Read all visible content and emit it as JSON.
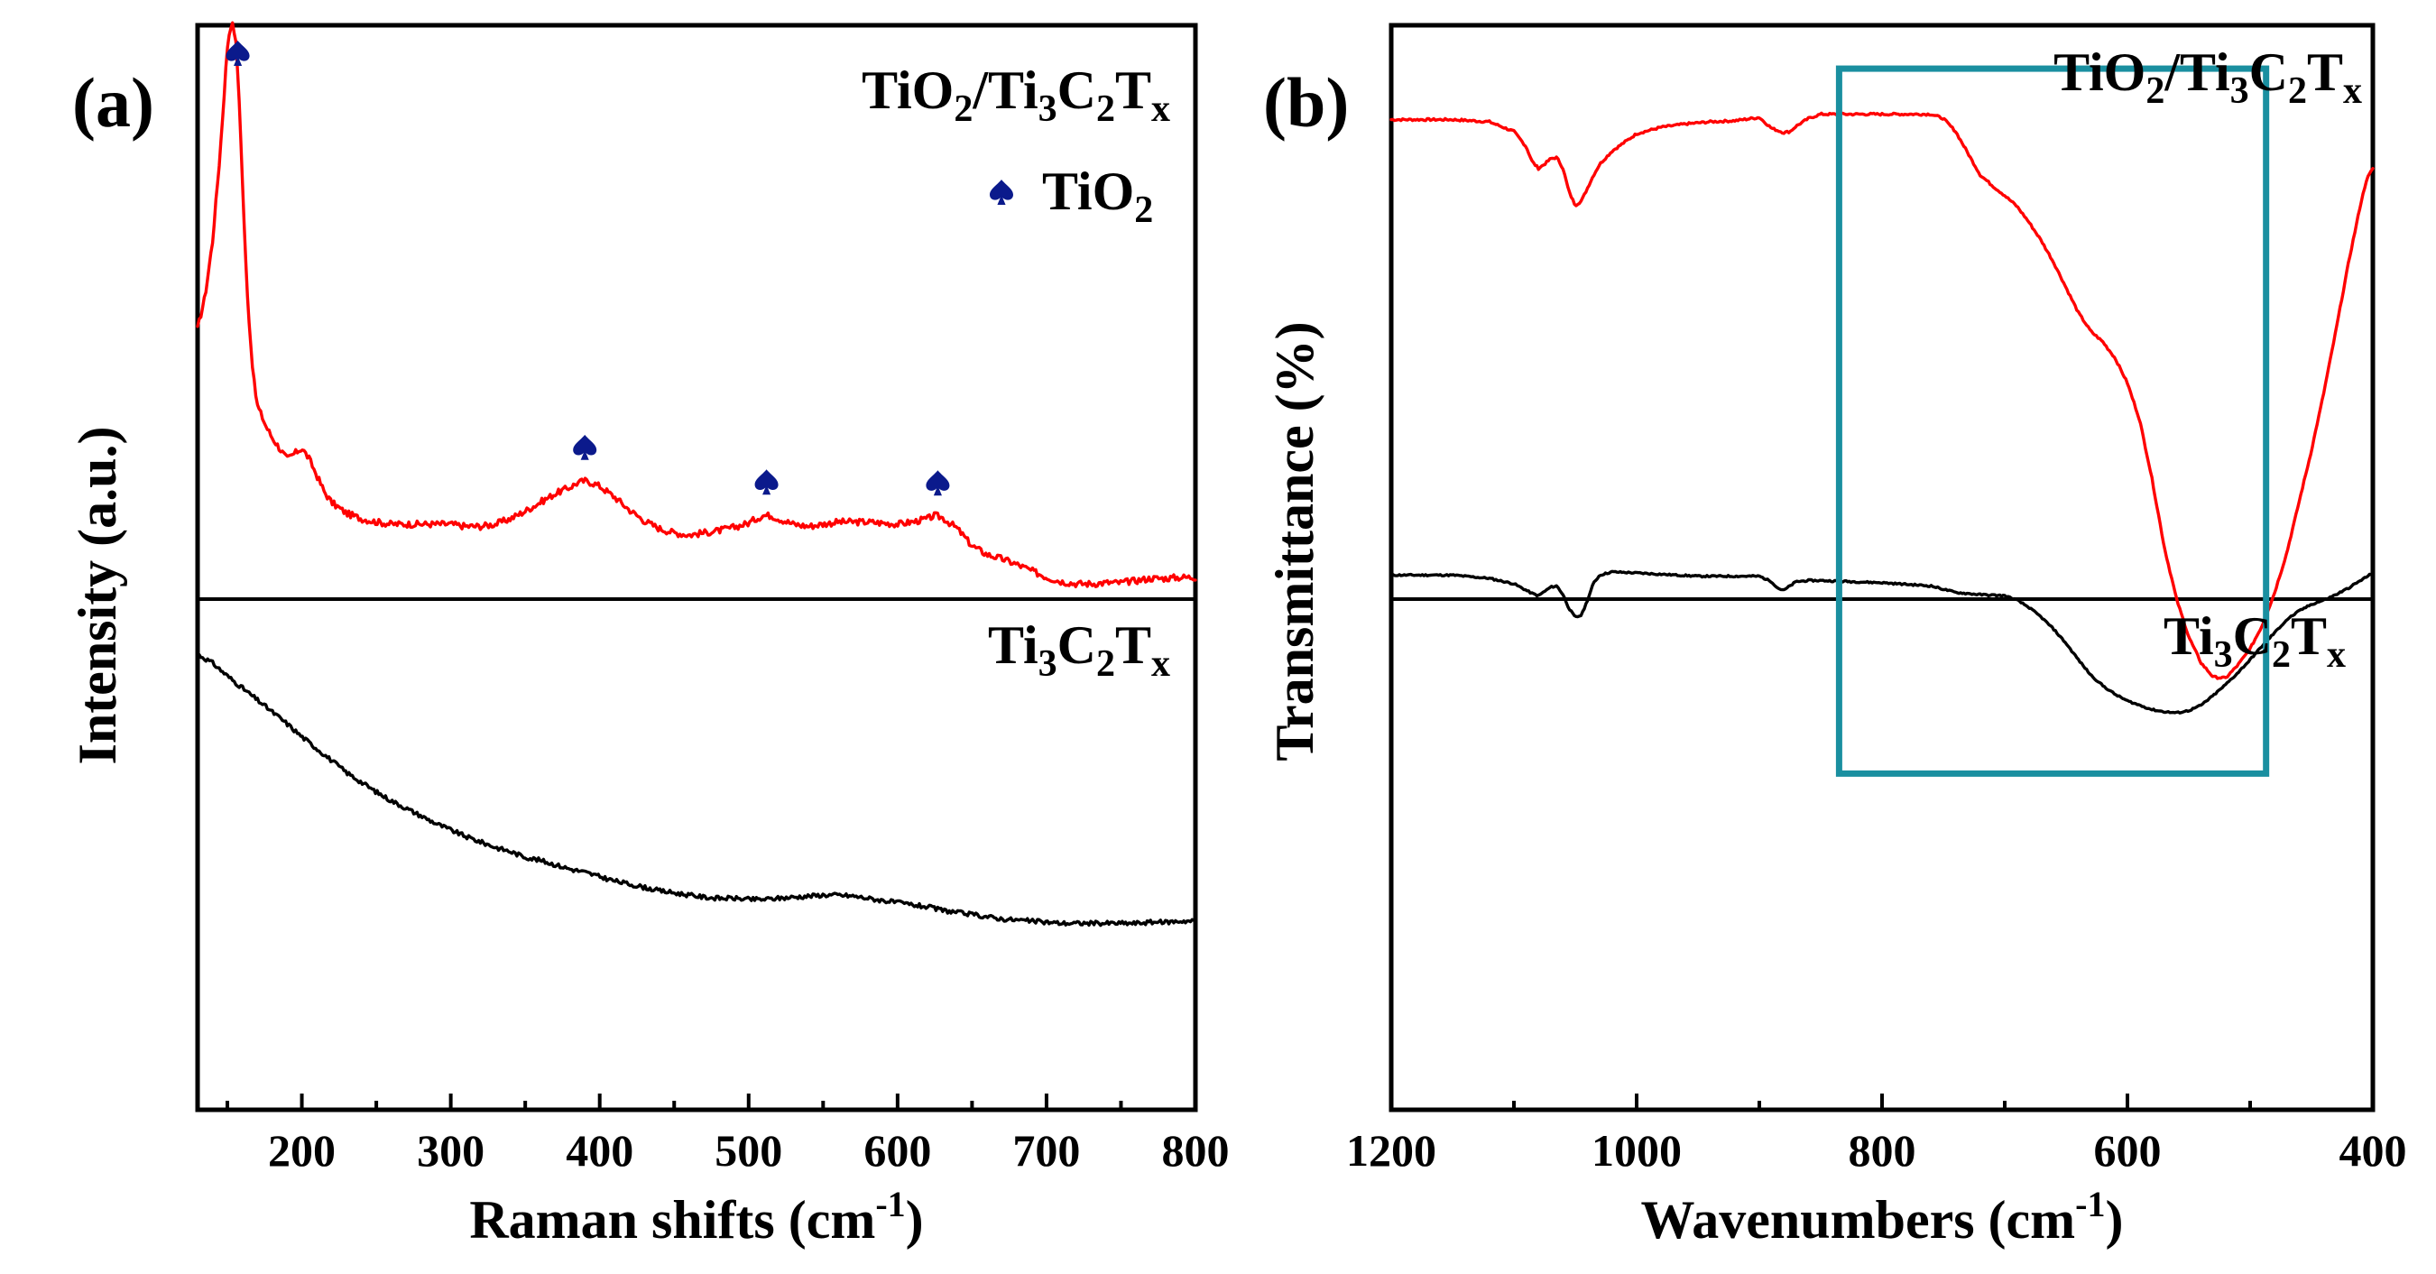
{
  "chart_data": [
    {
      "panel_label": "(a)",
      "type": "line",
      "xlabel": "Raman shifts (cm",
      "xlabel_sup": "-1",
      "xlabel_end": ")",
      "ylabel": "Intensity (a.u.)",
      "xlim": [
        130,
        800
      ],
      "x_ticks": [
        200,
        300,
        400,
        500,
        600,
        700,
        800
      ],
      "x_tick_labels": [
        "200",
        "300",
        "400",
        "500",
        "600",
        "700",
        "800"
      ],
      "colors": {
        "top": "#ff0000",
        "bottom": "#000000",
        "marker": "#0b1a8c"
      },
      "top_label": {
        "p1": "TiO",
        "s1": "2",
        "p2": "/Ti",
        "s2": "3",
        "p3": "C",
        "s3": "2",
        "p4": "T",
        "s4": "x"
      },
      "legend": {
        "text": "TiO",
        "sub": "2",
        "marker_icon": "spade-icon"
      },
      "markers_x": [
        157,
        390,
        512,
        627
      ],
      "bottom_label": {
        "p1": "Ti",
        "s1": "3",
        "p2": "C",
        "s2": "2",
        "p3": "T",
        "s3": "x"
      },
      "series": [
        {
          "name": "TiO2/Ti3C2Tx",
          "x": [
            130,
            135,
            140,
            145,
            148,
            150,
            152,
            154,
            156,
            158,
            160,
            162,
            164,
            166,
            168,
            170,
            173,
            176,
            180,
            185,
            190,
            195,
            200,
            205,
            210,
            215,
            220,
            225,
            230,
            240,
            250,
            260,
            270,
            280,
            290,
            300,
            310,
            320,
            330,
            340,
            350,
            360,
            370,
            380,
            385,
            390,
            395,
            400,
            410,
            420,
            430,
            440,
            450,
            460,
            470,
            480,
            490,
            500,
            505,
            510,
            515,
            520,
            530,
            540,
            550,
            560,
            570,
            580,
            590,
            600,
            610,
            620,
            625,
            630,
            640,
            650,
            660,
            670,
            680,
            690,
            700,
            710,
            720,
            730,
            740,
            750,
            760,
            770,
            780,
            790,
            800
          ],
          "y": [
            0.72,
            0.75,
            0.8,
            0.88,
            0.94,
            0.98,
            1.0,
            1.0,
            0.98,
            0.93,
            0.86,
            0.79,
            0.74,
            0.7,
            0.67,
            0.65,
            0.64,
            0.63,
            0.62,
            0.61,
            0.6,
            0.605,
            0.61,
            0.6,
            0.585,
            0.57,
            0.56,
            0.555,
            0.55,
            0.545,
            0.542,
            0.54,
            0.54,
            0.54,
            0.54,
            0.54,
            0.538,
            0.538,
            0.54,
            0.545,
            0.552,
            0.56,
            0.568,
            0.574,
            0.578,
            0.58,
            0.578,
            0.575,
            0.565,
            0.553,
            0.543,
            0.536,
            0.532,
            0.53,
            0.532,
            0.534,
            0.537,
            0.541,
            0.545,
            0.548,
            0.548,
            0.545,
            0.54,
            0.538,
            0.54,
            0.542,
            0.542,
            0.542,
            0.541,
            0.54,
            0.542,
            0.545,
            0.548,
            0.546,
            0.536,
            0.52,
            0.512,
            0.508,
            0.503,
            0.497,
            0.491,
            0.487,
            0.485,
            0.485,
            0.486,
            0.486,
            0.488,
            0.49,
            0.49,
            0.491,
            0.491
          ]
        },
        {
          "name": "Ti3C2Tx",
          "x": [
            130,
            140,
            150,
            160,
            170,
            180,
            190,
            200,
            210,
            220,
            230,
            240,
            250,
            260,
            270,
            280,
            290,
            300,
            310,
            320,
            330,
            340,
            350,
            360,
            370,
            380,
            390,
            400,
            410,
            420,
            430,
            440,
            450,
            460,
            470,
            480,
            490,
            500,
            510,
            520,
            530,
            540,
            550,
            560,
            570,
            580,
            590,
            600,
            610,
            620,
            630,
            640,
            650,
            660,
            670,
            680,
            690,
            700,
            710,
            720,
            730,
            740,
            750,
            760,
            770,
            780,
            790,
            800
          ],
          "y": [
            0.42,
            0.412,
            0.4,
            0.389,
            0.378,
            0.367,
            0.356,
            0.344,
            0.333,
            0.322,
            0.311,
            0.302,
            0.293,
            0.285,
            0.278,
            0.271,
            0.264,
            0.258,
            0.252,
            0.247,
            0.242,
            0.238,
            0.233,
            0.23,
            0.226,
            0.222,
            0.219,
            0.215,
            0.211,
            0.208,
            0.205,
            0.202,
            0.2,
            0.198,
            0.196,
            0.195,
            0.195,
            0.194,
            0.194,
            0.195,
            0.196,
            0.197,
            0.198,
            0.198,
            0.197,
            0.195,
            0.193,
            0.191,
            0.189,
            0.187,
            0.184,
            0.182,
            0.18,
            0.178,
            0.176,
            0.175,
            0.174,
            0.173,
            0.172,
            0.172,
            0.172,
            0.172,
            0.172,
            0.172,
            0.173,
            0.173,
            0.174,
            0.174
          ]
        }
      ]
    },
    {
      "panel_label": "(b)",
      "type": "line",
      "xlabel": "Wavenumbers (cm",
      "xlabel_sup": "-1",
      "xlabel_end": ")",
      "ylabel": "Transmittance (%)",
      "xlim": [
        1200,
        400
      ],
      "x_ticks": [
        1200,
        1000,
        800,
        600,
        400
      ],
      "x_tick_labels": [
        "1200",
        "1000",
        "800",
        "600",
        "400"
      ],
      "colors": {
        "top": "#ff0000",
        "bottom": "#000000",
        "highlight": "#1a8fa0"
      },
      "top_label": {
        "p1": "TiO",
        "s1": "2",
        "p2": "/Ti",
        "s2": "3",
        "p3": "C",
        "s3": "2",
        "p4": "T",
        "s4": "x"
      },
      "bottom_label": {
        "p1": "Ti",
        "s1": "3",
        "p2": "C",
        "s2": "2",
        "p3": "T",
        "s3": "x"
      },
      "highlight_range": {
        "x": [
          835,
          487
        ],
        "y": [
          0.31,
          0.96
        ]
      },
      "series": [
        {
          "name": "TiO2/Ti3C2Tx",
          "x": [
            1200,
            1150,
            1120,
            1100,
            1090,
            1085,
            1080,
            1075,
            1070,
            1065,
            1060,
            1055,
            1050,
            1045,
            1040,
            1035,
            1030,
            1020,
            1000,
            980,
            960,
            940,
            920,
            900,
            890,
            880,
            875,
            870,
            860,
            850,
            840,
            820,
            800,
            780,
            760,
            750,
            740,
            730,
            720,
            710,
            700,
            690,
            680,
            670,
            660,
            650,
            640,
            630,
            620,
            610,
            600,
            590,
            580,
            570,
            560,
            550,
            540,
            530,
            520,
            510,
            500,
            490,
            480,
            470,
            460,
            450,
            440,
            430,
            420,
            410,
            405,
            400
          ],
          "y": [
            0.913,
            0.913,
            0.911,
            0.902,
            0.888,
            0.874,
            0.868,
            0.872,
            0.877,
            0.878,
            0.868,
            0.846,
            0.834,
            0.838,
            0.85,
            0.862,
            0.872,
            0.884,
            0.9,
            0.906,
            0.909,
            0.911,
            0.912,
            0.915,
            0.905,
            0.901,
            0.902,
            0.907,
            0.914,
            0.918,
            0.918,
            0.918,
            0.918,
            0.918,
            0.918,
            0.914,
            0.902,
            0.882,
            0.862,
            0.852,
            0.843,
            0.833,
            0.818,
            0.801,
            0.781,
            0.758,
            0.735,
            0.718,
            0.708,
            0.693,
            0.67,
            0.636,
            0.582,
            0.519,
            0.471,
            0.436,
            0.412,
            0.399,
            0.398,
            0.41,
            0.425,
            0.447,
            0.477,
            0.514,
            0.561,
            0.608,
            0.661,
            0.719,
            0.78,
            0.835,
            0.858,
            0.868
          ]
        },
        {
          "name": "Ti3C2Tx",
          "x": [
            1200,
            1150,
            1120,
            1100,
            1085,
            1080,
            1075,
            1070,
            1065,
            1060,
            1055,
            1050,
            1045,
            1040,
            1035,
            1030,
            1020,
            1000,
            950,
            920,
            900,
            890,
            885,
            880,
            875,
            870,
            860,
            850,
            800,
            760,
            740,
            720,
            700,
            690,
            680,
            670,
            660,
            650,
            640,
            630,
            620,
            610,
            600,
            590,
            580,
            570,
            560,
            550,
            540,
            530,
            520,
            510,
            500,
            490,
            480,
            470,
            460,
            450,
            440,
            430,
            420,
            410,
            400
          ],
          "y": [
            0.493,
            0.493,
            0.49,
            0.485,
            0.476,
            0.474,
            0.478,
            0.482,
            0.483,
            0.475,
            0.462,
            0.454,
            0.456,
            0.47,
            0.486,
            0.493,
            0.496,
            0.495,
            0.492,
            0.492,
            0.492,
            0.487,
            0.481,
            0.479,
            0.483,
            0.487,
            0.488,
            0.488,
            0.486,
            0.483,
            0.477,
            0.475,
            0.474,
            0.47,
            0.463,
            0.454,
            0.443,
            0.43,
            0.415,
            0.401,
            0.391,
            0.383,
            0.377,
            0.373,
            0.369,
            0.367,
            0.366,
            0.368,
            0.373,
            0.382,
            0.392,
            0.403,
            0.415,
            0.428,
            0.44,
            0.452,
            0.46,
            0.466,
            0.47,
            0.475,
            0.481,
            0.488,
            0.495
          ]
        }
      ]
    }
  ]
}
